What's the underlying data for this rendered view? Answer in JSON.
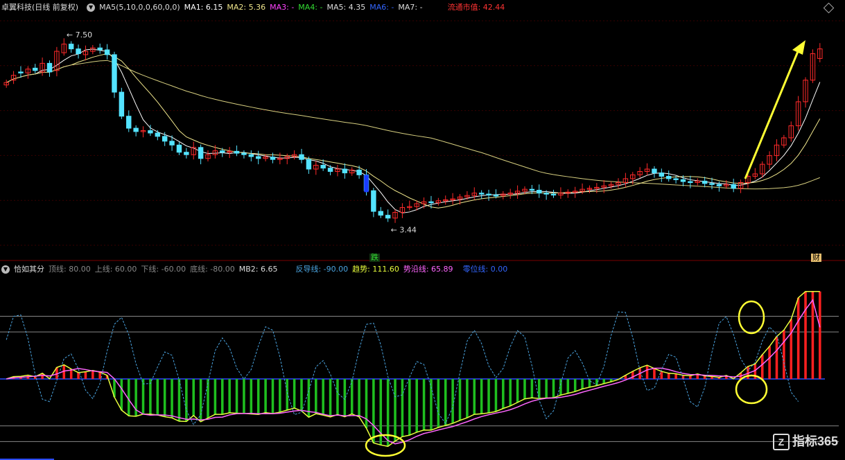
{
  "top_header": {
    "title": "卓翼科技(日线 前复权)",
    "ma_label": "MA5(5,10,0,0,60,0,0)",
    "ma1": "MA1: 6.15",
    "ma2": "MA2: 5.36",
    "ma3": "MA3: -",
    "ma4": "MA4: -",
    "ma5": "MA5: 4.35",
    "ma6": "MA6: -",
    "ma7": "MA7: -",
    "float_cap": "流通市值: 42.44"
  },
  "bottom_header": {
    "title": "恰如其分",
    "top_line": "顶线: 80.00",
    "upper_line": "上线: 60.00",
    "lower_line": "下线: -60.00",
    "bottom_line": "底线: -80.00",
    "mb2": "MB2: 6.65",
    "reverse_line": "反导线: -90.00",
    "trend": "趋势: 111.60",
    "momentum_line": "势沿线: 65.89",
    "zero_line": "零位线: 0.00"
  },
  "labels": {
    "high": "7.50",
    "low": "3.44",
    "drop_tag": "跌",
    "finance_tag": "财"
  },
  "watermark": "指标365",
  "colors": {
    "up": "#ff2a2a",
    "down": "#54e3ff",
    "ma_short": "#ffffff",
    "ma_mid": "#f0e68c",
    "ma_long": "#d8d080",
    "green_bar": "#1fbf1f",
    "red_bar": "#ff2020",
    "trend_line": "#e8ff3c",
    "momentum_line": "#ff66ff",
    "dash_line": "#4aa3df",
    "annotation": "#ffff33"
  },
  "chart_data": [
    {
      "type": "candlestick",
      "name": "卓翼科技(日线 前复权)",
      "high": 7.5,
      "low": 3.44,
      "ylim": [
        3.0,
        7.9
      ],
      "closes": [
        6.5,
        6.65,
        6.7,
        6.78,
        6.75,
        6.9,
        6.72,
        7.15,
        7.3,
        7.2,
        7.1,
        7.15,
        7.22,
        7.18,
        7.08,
        6.3,
        5.8,
        5.55,
        5.48,
        5.5,
        5.45,
        5.38,
        5.28,
        5.2,
        5.05,
        5.0,
        5.15,
        4.92,
        5.0,
        5.08,
        5.05,
        5.07,
        5.03,
        5.0,
        4.96,
        4.92,
        4.95,
        4.9,
        4.92,
        4.96,
        5.0,
        4.9,
        4.7,
        4.78,
        4.72,
        4.65,
        4.7,
        4.62,
        4.68,
        4.58,
        4.25,
        3.82,
        3.74,
        3.68,
        3.8,
        3.9,
        3.92,
        3.98,
        4.02,
        4.0,
        4.04,
        4.06,
        4.08,
        4.12,
        4.15,
        4.2,
        4.18,
        4.16,
        4.15,
        4.18,
        4.2,
        4.24,
        4.28,
        4.26,
        4.2,
        4.18,
        4.16,
        4.2,
        4.22,
        4.24,
        4.28,
        4.3,
        4.32,
        4.35,
        4.38,
        4.42,
        4.5,
        4.58,
        4.65,
        4.7,
        4.62,
        4.55,
        4.5,
        4.48,
        4.44,
        4.42,
        4.45,
        4.4,
        4.38,
        4.35,
        4.38,
        4.3,
        4.42,
        4.55,
        4.6,
        4.8,
        4.98,
        5.2,
        5.35,
        5.6,
        6.1,
        6.55,
        7.1,
        7.2
      ],
      "opens": [
        6.45,
        6.55,
        6.72,
        6.7,
        6.8,
        6.72,
        6.9,
        6.75,
        7.12,
        7.3,
        7.2,
        7.08,
        7.15,
        7.22,
        7.18,
        7.08,
        6.3,
        5.8,
        5.55,
        5.48,
        5.5,
        5.45,
        5.38,
        5.28,
        5.2,
        5.05,
        5.0,
        5.15,
        4.92,
        5.0,
        5.08,
        5.05,
        5.07,
        5.03,
        5.0,
        4.96,
        4.92,
        4.95,
        4.9,
        4.92,
        4.96,
        5.0,
        4.9,
        4.7,
        4.78,
        4.72,
        4.65,
        4.7,
        4.62,
        4.68,
        4.58,
        4.25,
        3.82,
        3.74,
        3.68,
        3.8,
        3.9,
        3.92,
        3.98,
        4.02,
        4.0,
        4.04,
        4.06,
        4.08,
        4.12,
        4.15,
        4.2,
        4.18,
        4.16,
        4.15,
        4.18,
        4.2,
        4.24,
        4.28,
        4.26,
        4.2,
        4.18,
        4.16,
        4.2,
        4.22,
        4.24,
        4.28,
        4.3,
        4.32,
        4.35,
        4.38,
        4.42,
        4.5,
        4.58,
        4.65,
        4.7,
        4.62,
        4.55,
        4.5,
        4.48,
        4.44,
        4.42,
        4.45,
        4.4,
        4.38,
        4.35,
        4.38,
        4.3,
        4.42,
        4.55,
        4.6,
        4.8,
        4.98,
        5.2,
        5.35,
        5.6,
        6.1,
        6.55,
        7.0
      ],
      "series": [
        {
          "name": "MA1",
          "kind": "short"
        },
        {
          "name": "MA2",
          "kind": "mid"
        },
        {
          "name": "MA5",
          "kind": "long"
        }
      ]
    },
    {
      "type": "bar+line",
      "name": "恰如其分",
      "ylim": [
        -100,
        130
      ],
      "reference_lines": {
        "top": 80,
        "upper": 60,
        "zero": 0,
        "lower": -60,
        "bottom": -80
      },
      "trend_end": 111.6,
      "momentum_end": 65.89,
      "reverse_line": -90,
      "mb2": 6.65
    }
  ]
}
